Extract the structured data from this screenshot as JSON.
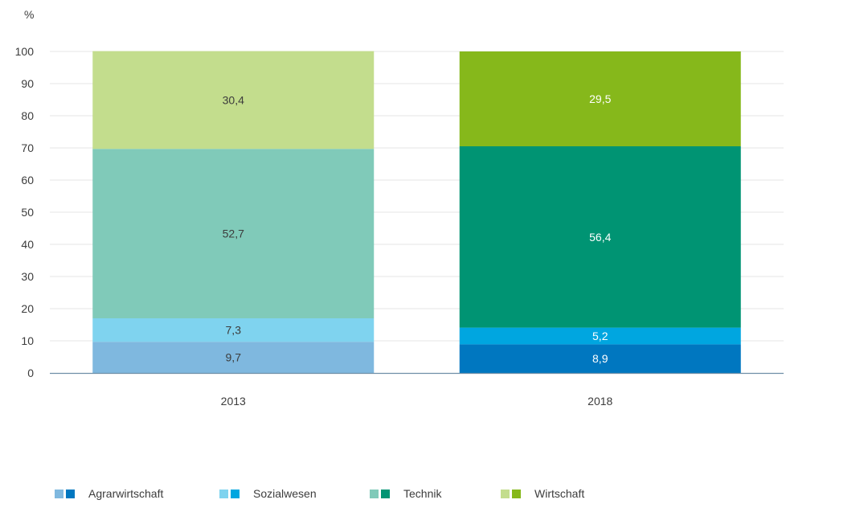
{
  "chart_data": {
    "type": "bar",
    "stacked": true,
    "unit_label": "%",
    "categories": [
      "2013",
      "2018"
    ],
    "ylim": [
      0,
      100
    ],
    "yticks": [
      "0",
      "10",
      "20",
      "30",
      "40",
      "50",
      "60",
      "70",
      "80",
      "90",
      "100"
    ],
    "grid": true,
    "legend_position": "bottom",
    "series": [
      {
        "name": "Agrarwirtschaft",
        "values": [
          9.7,
          8.9
        ],
        "labels": [
          "9,7",
          "8,9"
        ],
        "colors": [
          "#7fb8df",
          "#0077c0"
        ],
        "label_colors": [
          "#3c3c3c",
          "#ffffff"
        ]
      },
      {
        "name": "Sozialwesen",
        "values": [
          7.3,
          5.2
        ],
        "labels": [
          "7,3",
          "5,2"
        ],
        "colors": [
          "#7fd3ef",
          "#00a6e0"
        ],
        "label_colors": [
          "#3c3c3c",
          "#ffffff"
        ]
      },
      {
        "name": "Technik",
        "values": [
          52.7,
          56.4
        ],
        "labels": [
          "52,7",
          "56,4"
        ],
        "colors": [
          "#80cab9",
          "#009473"
        ],
        "label_colors": [
          "#3c3c3c",
          "#ffffff"
        ]
      },
      {
        "name": "Wirtschaft",
        "values": [
          30.4,
          29.5
        ],
        "labels": [
          "30,4",
          "29,5"
        ],
        "colors": [
          "#c3dd8d",
          "#86b81b"
        ],
        "label_colors": [
          "#3c3c3c",
          "#ffffff"
        ]
      }
    ]
  }
}
